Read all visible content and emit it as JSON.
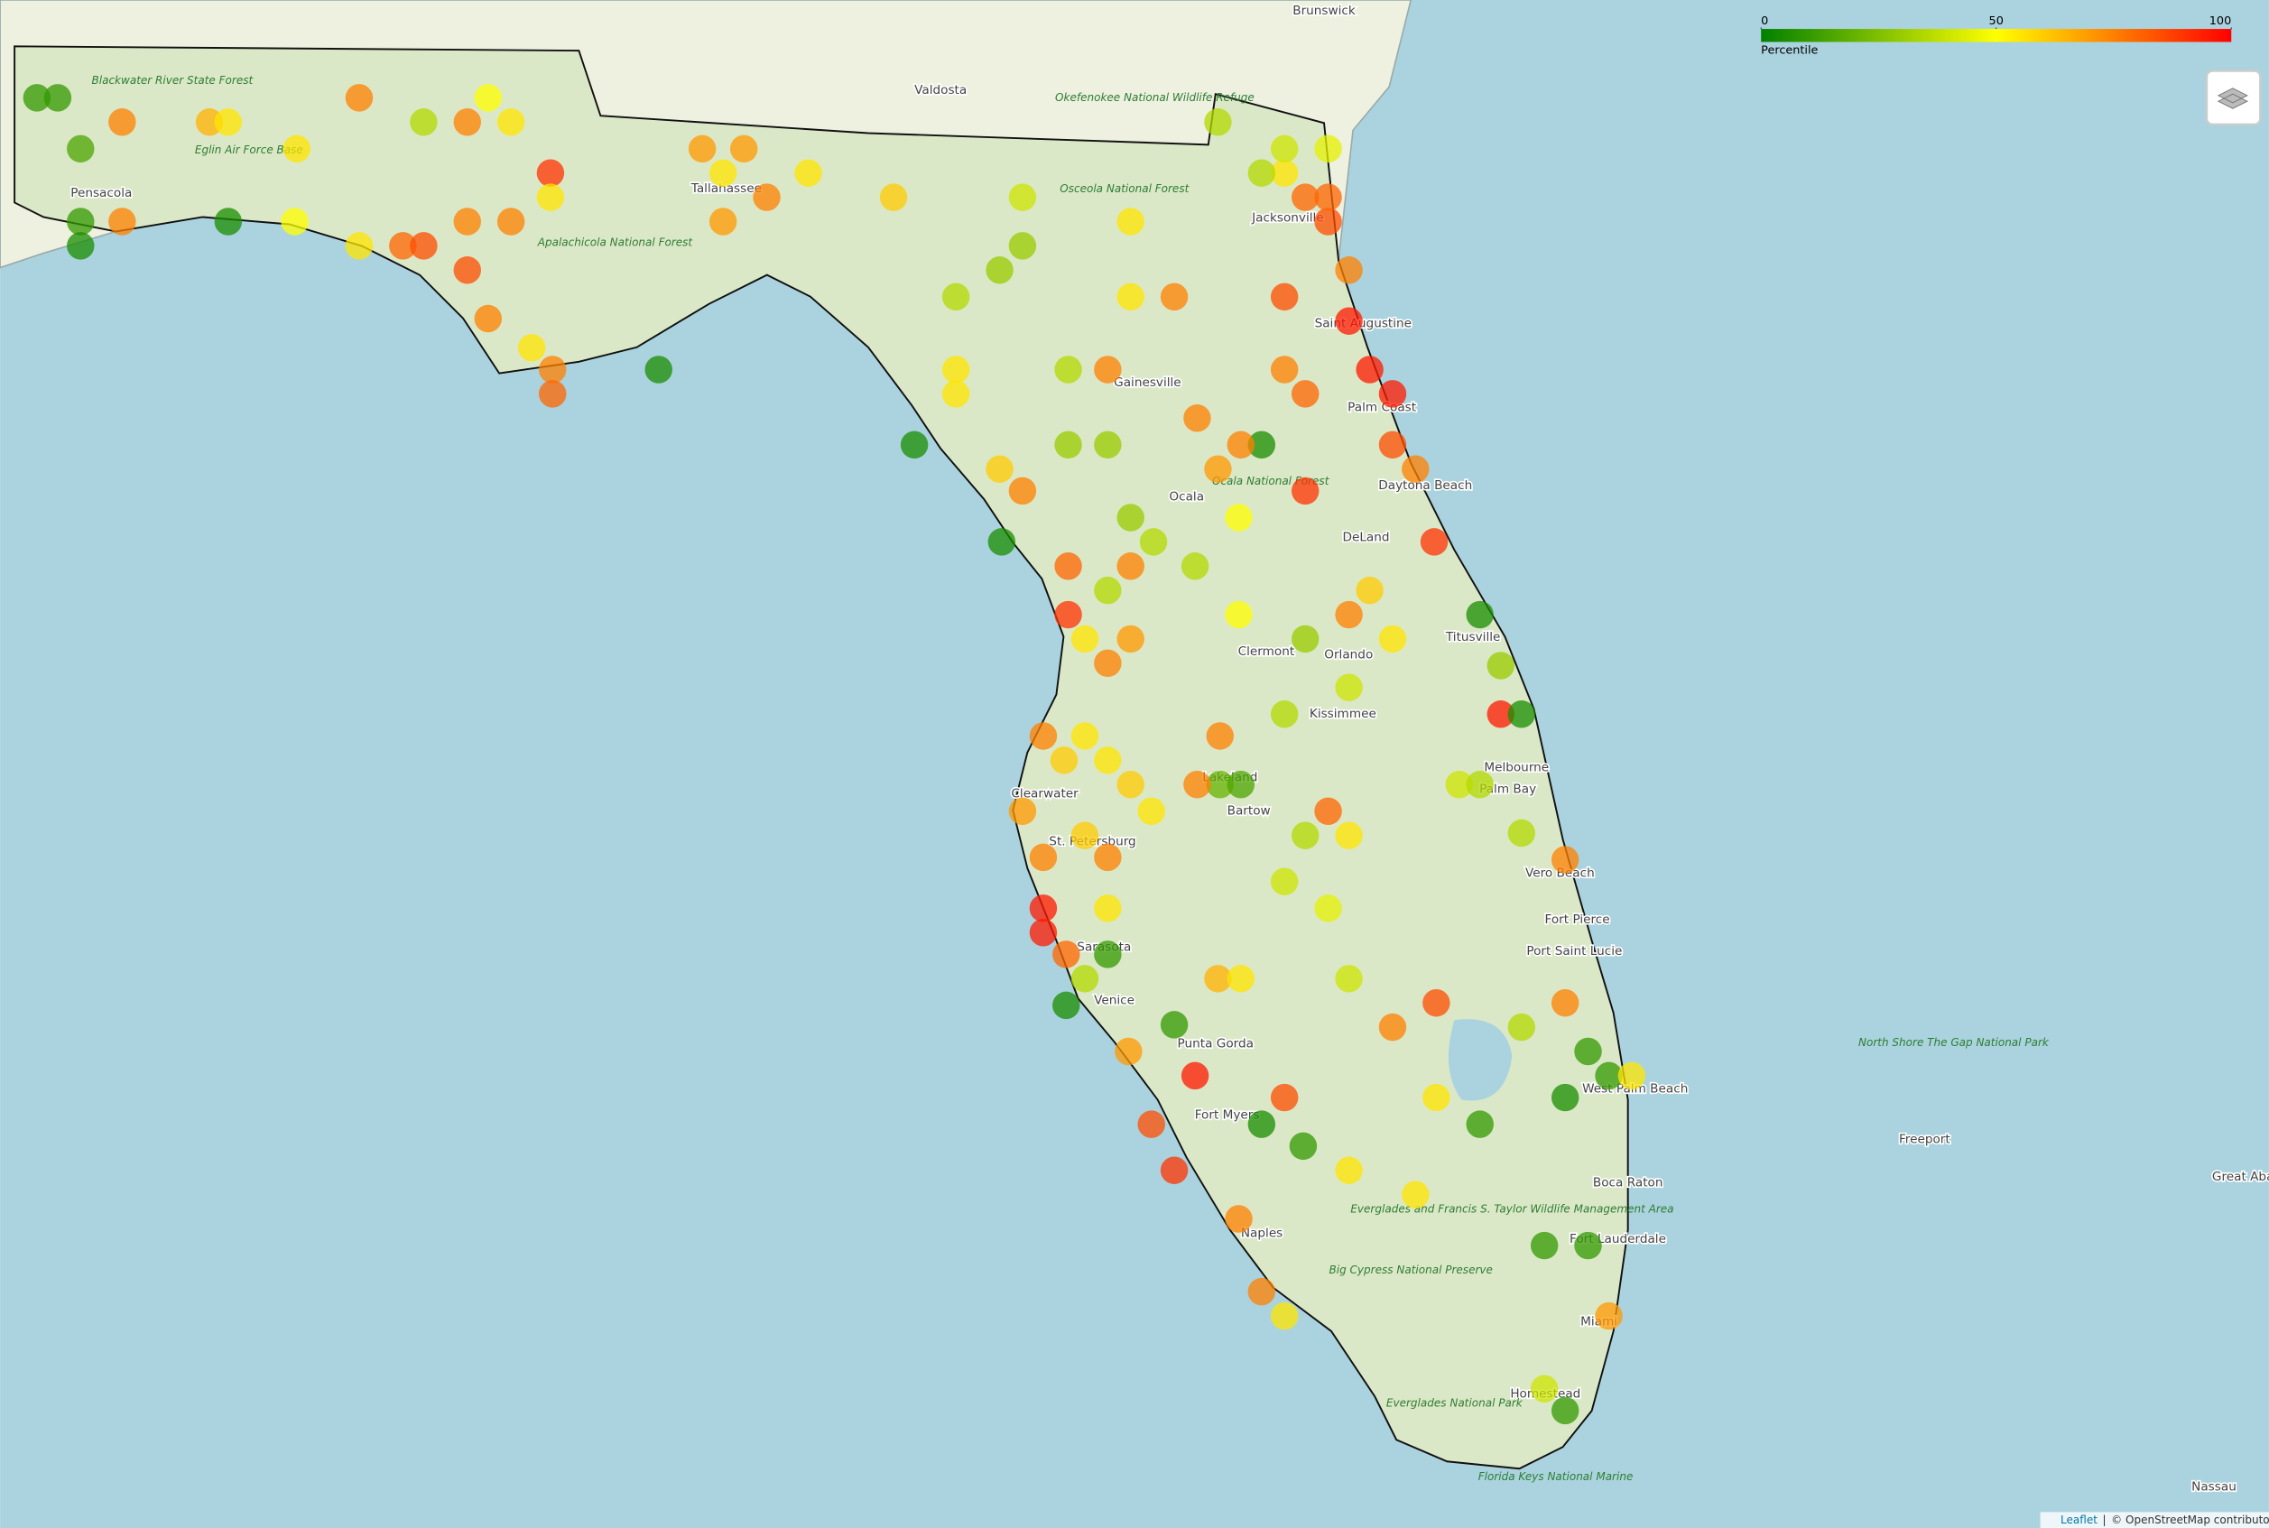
{
  "map": {
    "legend": {
      "title": "Percentile",
      "ticks": [
        0,
        50,
        100
      ],
      "colors": [
        "#008000",
        "#ffff00",
        "#ff0000"
      ]
    },
    "places": [
      "Brunswick",
      "Valdosta",
      "Jacksonville",
      "Tallahassee",
      "Saint Augustine",
      "Palm Coast",
      "Gainesville",
      "Ocala",
      "Daytona Beach",
      "DeLand",
      "Titusville",
      "Orlando",
      "Clermont",
      "Kissimmee",
      "Lakeland",
      "Bartow",
      "Melbourne",
      "Palm Bay",
      "Clearwater",
      "St. Petersburg",
      "Sarasota",
      "Venice",
      "Vero Beach",
      "Fort Pierce",
      "Port Saint Lucie",
      "West Palm Beach",
      "Boca Raton",
      "Fort Lauderdale",
      "Miami",
      "Homestead",
      "Naples",
      "Fort Myers",
      "Punta Gorda",
      "Pensacola",
      "Freeport",
      "Nassau",
      "Great Abaco"
    ],
    "parks": [
      "Okefenokee National Wildlife Refuge",
      "Osceola National Forest",
      "Blackwater River State Forest",
      "Eglin Air Force Base",
      "Apalachicola National Forest",
      "Ocala National Forest",
      "Big Cypress National Preserve",
      "Everglades National Park",
      "Everglades and Francis S. Taylor Wildlife Management Area",
      "North Shore The Gap National Park",
      "Florida Keys National Marine"
    ],
    "attribution": {
      "leaflet": "Leaflet",
      "separator": "|",
      "osm": "© OpenStreetMap contributors"
    },
    "stations": [
      {
        "lon": -87.53,
        "lat": 30.81,
        "percentile": 10
      },
      {
        "lon": -87.43,
        "lat": 30.81,
        "percentile": 10
      },
      {
        "lon": -87.12,
        "lat": 30.71,
        "percentile": 75
      },
      {
        "lon": -87.32,
        "lat": 30.6,
        "percentile": 15
      },
      {
        "lon": -87.32,
        "lat": 30.3,
        "percentile": 10
      },
      {
        "lon": -87.32,
        "lat": 30.2,
        "percentile": 5
      },
      {
        "lon": -87.12,
        "lat": 30.3,
        "percentile": 75
      },
      {
        "lon": -86.7,
        "lat": 30.71,
        "percentile": 65
      },
      {
        "lon": -86.61,
        "lat": 30.71,
        "percentile": 55
      },
      {
        "lon": -86.28,
        "lat": 30.6,
        "percentile": 55
      },
      {
        "lon": -86.61,
        "lat": 30.3,
        "percentile": 5
      },
      {
        "lon": -86.29,
        "lat": 30.3,
        "percentile": 50
      },
      {
        "lon": -85.98,
        "lat": 30.81,
        "percentile": 75
      },
      {
        "lon": -85.67,
        "lat": 30.71,
        "percentile": 35
      },
      {
        "lon": -85.46,
        "lat": 30.71,
        "percentile": 75
      },
      {
        "lon": -85.36,
        "lat": 30.81,
        "percentile": 50
      },
      {
        "lon": -85.25,
        "lat": 30.71,
        "percentile": 55
      },
      {
        "lon": -85.06,
        "lat": 30.5,
        "percentile": 90
      },
      {
        "lon": -85.06,
        "lat": 30.4,
        "percentile": 55
      },
      {
        "lon": -85.25,
        "lat": 30.3,
        "percentile": 75
      },
      {
        "lon": -85.46,
        "lat": 30.3,
        "percentile": 75
      },
      {
        "lon": -85.77,
        "lat": 30.2,
        "percentile": 80
      },
      {
        "lon": -85.67,
        "lat": 30.2,
        "percentile": 85
      },
      {
        "lon": -85.46,
        "lat": 30.1,
        "percentile": 85
      },
      {
        "lon": -85.98,
        "lat": 30.2,
        "percentile": 55
      },
      {
        "lon": -85.36,
        "lat": 29.9,
        "percentile": 75
      },
      {
        "lon": -85.15,
        "lat": 29.78,
        "percentile": 55
      },
      {
        "lon": -85.05,
        "lat": 29.69,
        "percentile": 75
      },
      {
        "lon": -85.05,
        "lat": 29.59,
        "percentile": 80
      },
      {
        "lon": -84.54,
        "lat": 29.69,
        "percentile": 5
      },
      {
        "lon": -84.33,
        "lat": 30.6,
        "percentile": 70
      },
      {
        "lon": -84.13,
        "lat": 30.6,
        "percentile": 70
      },
      {
        "lon": -84.23,
        "lat": 30.5,
        "percentile": 55
      },
      {
        "lon": -84.23,
        "lat": 30.3,
        "percentile": 70
      },
      {
        "lon": -84.02,
        "lat": 30.4,
        "percentile": 75
      },
      {
        "lon": -83.82,
        "lat": 30.5,
        "percentile": 55
      },
      {
        "lon": -83.41,
        "lat": 30.4,
        "percentile": 60
      },
      {
        "lon": -82.79,
        "lat": 30.4,
        "percentile": 40
      },
      {
        "lon": -82.79,
        "lat": 30.2,
        "percentile": 30
      },
      {
        "lon": -82.9,
        "lat": 30.1,
        "percentile": 30
      },
      {
        "lon": -83.11,
        "lat": 29.99,
        "percentile": 35
      },
      {
        "lon": -83.11,
        "lat": 29.69,
        "percentile": 55
      },
      {
        "lon": -83.11,
        "lat": 29.59,
        "percentile": 55
      },
      {
        "lon": -83.31,
        "lat": 29.38,
        "percentile": 5
      },
      {
        "lon": -82.89,
        "lat": 28.98,
        "percentile": 5
      },
      {
        "lon": -82.79,
        "lat": 29.19,
        "percentile": 75
      },
      {
        "lon": -82.9,
        "lat": 29.28,
        "percentile": 60
      },
      {
        "lon": -82.57,
        "lat": 28.88,
        "percentile": 80
      },
      {
        "lon": -82.57,
        "lat": 28.68,
        "percentile": 90
      },
      {
        "lon": -82.69,
        "lat": 28.18,
        "percentile": 75
      },
      {
        "lon": -82.59,
        "lat": 28.08,
        "percentile": 60
      },
      {
        "lon": -82.79,
        "lat": 27.87,
        "percentile": 70
      },
      {
        "lon": -82.69,
        "lat": 27.68,
        "percentile": 75
      },
      {
        "lon": -82.69,
        "lat": 27.47,
        "percentile": 95
      },
      {
        "lon": -82.69,
        "lat": 27.37,
        "percentile": 95
      },
      {
        "lon": -82.58,
        "lat": 27.28,
        "percentile": 80
      },
      {
        "lon": -82.58,
        "lat": 27.07,
        "percentile": 5
      },
      {
        "lon": -82.38,
        "lat": 27.28,
        "percentile": 10
      },
      {
        "lon": -82.17,
        "lat": 26.58,
        "percentile": 85
      },
      {
        "lon": -82.06,
        "lat": 26.39,
        "percentile": 90
      },
      {
        "lon": -81.96,
        "lat": 26.78,
        "percentile": 95
      },
      {
        "lon": -82.06,
        "lat": 26.99,
        "percentile": 10
      },
      {
        "lon": -81.75,
        "lat": 26.19,
        "percentile": 75
      },
      {
        "lon": -81.64,
        "lat": 25.89,
        "percentile": 75
      },
      {
        "lon": -81.53,
        "lat": 25.79,
        "percentile": 55
      },
      {
        "lon": -81.64,
        "lat": 26.58,
        "percentile": 5
      },
      {
        "lon": -81.44,
        "lat": 26.49,
        "percentile": 10
      },
      {
        "lon": -81.53,
        "lat": 26.69,
        "percentile": 85
      },
      {
        "lon": -81.22,
        "lat": 26.39,
        "percentile": 55
      },
      {
        "lon": -80.9,
        "lat": 26.29,
        "percentile": 55
      },
      {
        "lon": -80.59,
        "lat": 26.58,
        "percentile": 10
      },
      {
        "lon": -80.07,
        "lat": 26.88,
        "percentile": 10
      },
      {
        "lon": -79.97,
        "lat": 26.78,
        "percentile": 10
      },
      {
        "lon": -79.86,
        "lat": 26.78,
        "percentile": 55
      },
      {
        "lon": -80.18,
        "lat": 26.69,
        "percentile": 5
      },
      {
        "lon": -80.07,
        "lat": 26.08,
        "percentile": 10
      },
      {
        "lon": -80.28,
        "lat": 26.08,
        "percentile": 10
      },
      {
        "lon": -79.97,
        "lat": 25.79,
        "percentile": 70
      },
      {
        "lon": -80.18,
        "lat": 25.4,
        "percentile": 10
      },
      {
        "lon": -80.28,
        "lat": 25.49,
        "percentile": 40
      },
      {
        "lon": -80.8,
        "lat": 26.69,
        "percentile": 55
      },
      {
        "lon": -81.01,
        "lat": 26.98,
        "percentile": 75
      },
      {
        "lon": -80.8,
        "lat": 27.08,
        "percentile": 85
      },
      {
        "lon": -80.39,
        "lat": 26.98,
        "percentile": 35
      },
      {
        "lon": -80.18,
        "lat": 27.08,
        "percentile": 75
      },
      {
        "lon": -80.18,
        "lat": 27.67,
        "percentile": 75
      },
      {
        "lon": -80.39,
        "lat": 27.78,
        "percentile": 35
      },
      {
        "lon": -80.49,
        "lat": 28.27,
        "percentile": 95
      },
      {
        "lon": -80.39,
        "lat": 28.27,
        "percentile": 5
      },
      {
        "lon": -80.59,
        "lat": 28.68,
        "percentile": 5
      },
      {
        "lon": -80.69,
        "lat": 27.98,
        "percentile": 40
      },
      {
        "lon": -80.59,
        "lat": 27.98,
        "percentile": 35
      },
      {
        "lon": -80.81,
        "lat": 28.98,
        "percentile": 90
      },
      {
        "lon": -80.9,
        "lat": 29.28,
        "percentile": 75
      },
      {
        "lon": -81.01,
        "lat": 29.38,
        "percentile": 85
      },
      {
        "lon": -81.01,
        "lat": 29.59,
        "percentile": 95
      },
      {
        "lon": -81.12,
        "lat": 29.69,
        "percentile": 95
      },
      {
        "lon": -81.22,
        "lat": 29.89,
        "percentile": 95
      },
      {
        "lon": -81.22,
        "lat": 30.1,
        "percentile": 75
      },
      {
        "lon": -81.32,
        "lat": 30.3,
        "percentile": 85
      },
      {
        "lon": -81.32,
        "lat": 30.4,
        "percentile": 80
      },
      {
        "lon": -81.43,
        "lat": 30.4,
        "percentile": 80
      },
      {
        "lon": -81.53,
        "lat": 30.5,
        "percentile": 55
      },
      {
        "lon": -81.64,
        "lat": 30.5,
        "percentile": 35
      },
      {
        "lon": -81.85,
        "lat": 30.71,
        "percentile": 35
      },
      {
        "lon": -81.53,
        "lat": 30.6,
        "percentile": 40
      },
      {
        "lon": -81.32,
        "lat": 30.6,
        "percentile": 45
      },
      {
        "lon": -81.53,
        "lat": 29.99,
        "percentile": 85
      },
      {
        "lon": -81.53,
        "lat": 29.69,
        "percentile": 75
      },
      {
        "lon": -81.43,
        "lat": 29.59,
        "percentile": 80
      },
      {
        "lon": -81.64,
        "lat": 29.38,
        "percentile": 5
      },
      {
        "lon": -81.43,
        "lat": 29.19,
        "percentile": 90
      },
      {
        "lon": -81.74,
        "lat": 29.38,
        "percentile": 75
      },
      {
        "lon": -81.85,
        "lat": 29.28,
        "percentile": 70
      },
      {
        "lon": -81.95,
        "lat": 29.49,
        "percentile": 75
      },
      {
        "lon": -82.06,
        "lat": 29.99,
        "percentile": 75
      },
      {
        "lon": -82.27,
        "lat": 29.99,
        "percentile": 55
      },
      {
        "lon": -82.27,
        "lat": 30.3,
        "percentile": 55
      },
      {
        "lon": -82.38,
        "lat": 29.69,
        "percentile": 75
      },
      {
        "lon": -82.57,
        "lat": 29.69,
        "percentile": 35
      },
      {
        "lon": -82.57,
        "lat": 29.38,
        "percentile": 30
      },
      {
        "lon": -82.38,
        "lat": 29.38,
        "percentile": 30
      },
      {
        "lon": -82.27,
        "lat": 29.08,
        "percentile": 30
      },
      {
        "lon": -82.16,
        "lat": 28.98,
        "percentile": 35
      },
      {
        "lon": -81.96,
        "lat": 28.88,
        "percentile": 35
      },
      {
        "lon": -81.75,
        "lat": 29.08,
        "percentile": 50
      },
      {
        "lon": -81.75,
        "lat": 28.68,
        "percentile": 50
      },
      {
        "lon": -81.43,
        "lat": 28.58,
        "percentile": 30
      },
      {
        "lon": -81.22,
        "lat": 28.68,
        "percentile": 75
      },
      {
        "lon": -81.12,
        "lat": 28.78,
        "percentile": 60
      },
      {
        "lon": -81.01,
        "lat": 28.58,
        "percentile": 55
      },
      {
        "lon": -81.22,
        "lat": 28.38,
        "percentile": 40
      },
      {
        "lon": -81.53,
        "lat": 28.27,
        "percentile": 35
      },
      {
        "lon": -81.84,
        "lat": 28.18,
        "percentile": 75
      },
      {
        "lon": -81.84,
        "lat": 27.98,
        "percentile": 20
      },
      {
        "lon": -81.74,
        "lat": 27.98,
        "percentile": 15
      },
      {
        "lon": -81.95,
        "lat": 27.98,
        "percentile": 75
      },
      {
        "lon": -81.32,
        "lat": 27.87,
        "percentile": 80
      },
      {
        "lon": -81.43,
        "lat": 27.77,
        "percentile": 35
      },
      {
        "lon": -81.22,
        "lat": 27.77,
        "percentile": 55
      },
      {
        "lon": -81.53,
        "lat": 27.58,
        "percentile": 40
      },
      {
        "lon": -81.32,
        "lat": 27.47,
        "percentile": 45
      },
      {
        "lon": -81.85,
        "lat": 27.18,
        "percentile": 65
      },
      {
        "lon": -81.74,
        "lat": 27.18,
        "percentile": 55
      },
      {
        "lon": -81.22,
        "lat": 27.18,
        "percentile": 40
      },
      {
        "lon": -82.49,
        "lat": 28.18,
        "percentile": 55
      },
      {
        "lon": -82.38,
        "lat": 28.08,
        "percentile": 55
      },
      {
        "lon": -82.27,
        "lat": 27.98,
        "percentile": 60
      },
      {
        "lon": -82.17,
        "lat": 27.87,
        "percentile": 55
      },
      {
        "lon": -82.49,
        "lat": 28.58,
        "percentile": 55
      },
      {
        "lon": -82.38,
        "lat": 28.48,
        "percentile": 75
      },
      {
        "lon": -82.27,
        "lat": 28.88,
        "percentile": 75
      },
      {
        "lon": -82.38,
        "lat": 28.78,
        "percentile": 35
      },
      {
        "lon": -82.27,
        "lat": 28.58,
        "percentile": 70
      },
      {
        "lon": -82.49,
        "lat": 27.77,
        "percentile": 60
      },
      {
        "lon": -82.38,
        "lat": 27.68,
        "percentile": 75
      },
      {
        "lon": -82.38,
        "lat": 27.47,
        "percentile": 55
      },
      {
        "lon": -82.49,
        "lat": 27.18,
        "percentile": 35
      },
      {
        "lon": -82.28,
        "lat": 26.88,
        "percentile": 70
      },
      {
        "lon": -80.49,
        "lat": 28.47,
        "percentile": 30
      }
    ]
  }
}
